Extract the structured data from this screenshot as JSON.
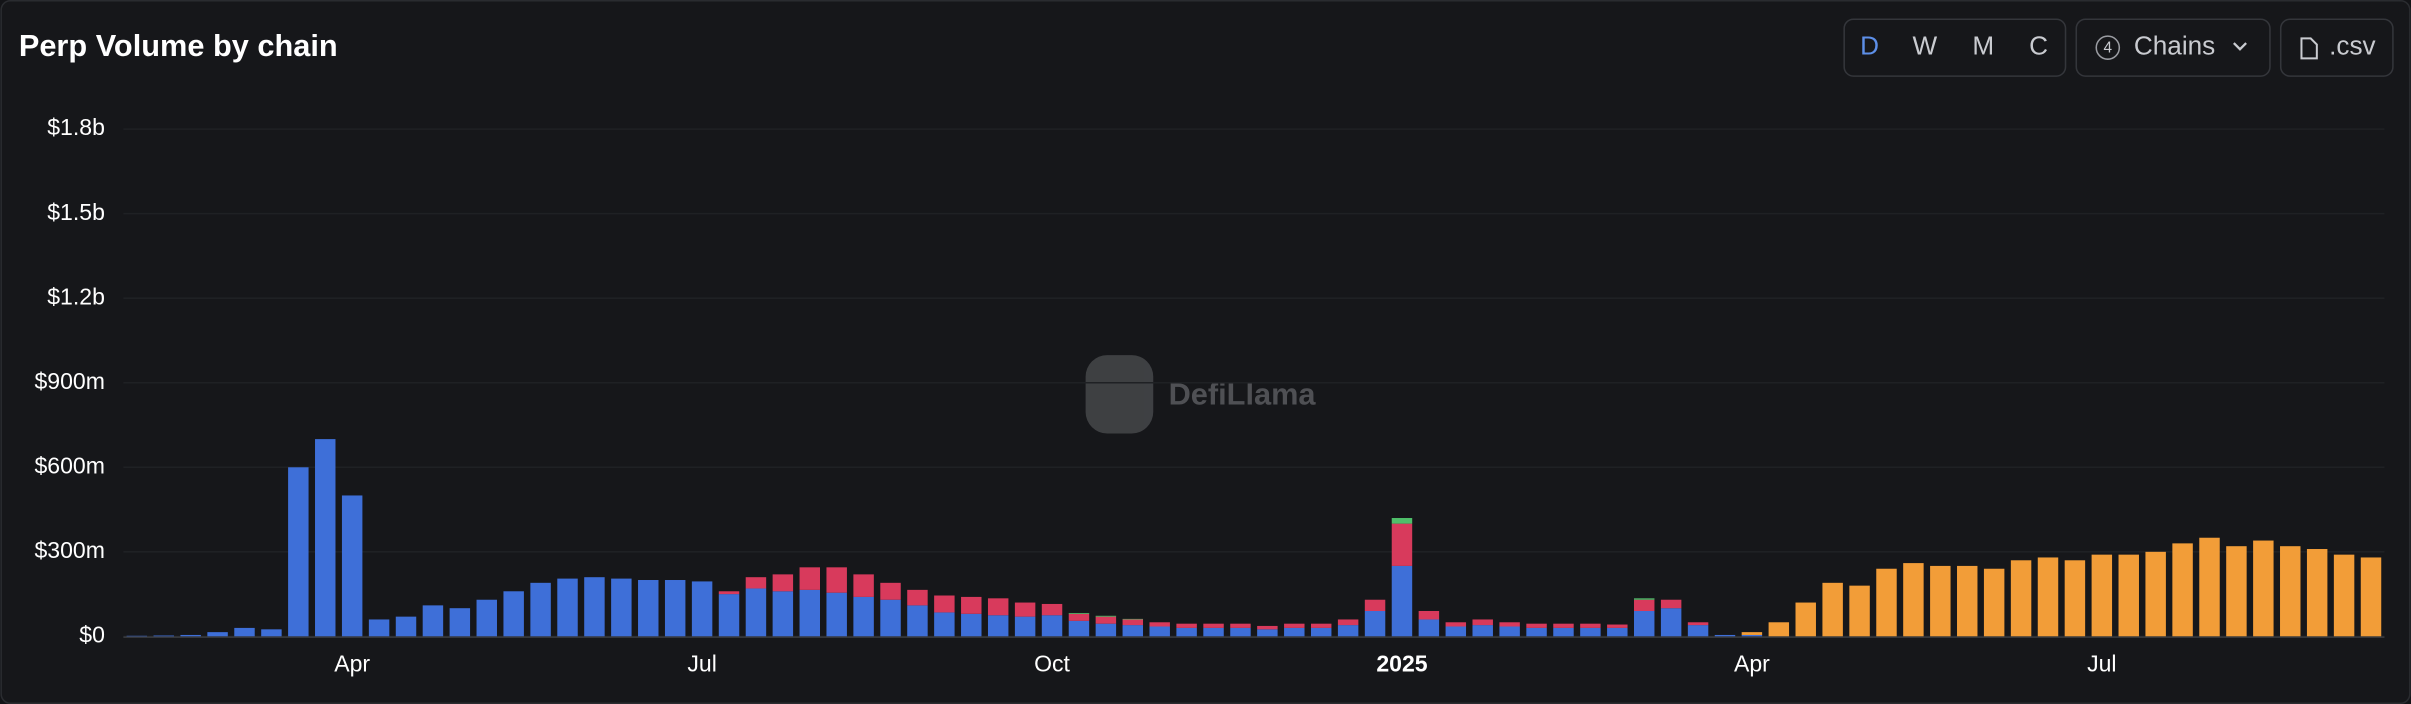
{
  "chart_data": {
    "type": "bar",
    "stacked": true,
    "title": "Perp Volume by chain",
    "categories": [
      null,
      null,
      null,
      null,
      null,
      null,
      null,
      null,
      "Apr",
      null,
      null,
      null,
      null,
      null,
      null,
      null,
      null,
      null,
      null,
      null,
      null,
      "Jul",
      null,
      null,
      null,
      null,
      null,
      null,
      null,
      null,
      null,
      null,
      null,
      null,
      "Oct",
      null,
      null,
      null,
      null,
      null,
      null,
      null,
      null,
      null,
      null,
      null,
      null,
      "2025",
      null,
      null,
      null,
      null,
      null,
      null,
      null,
      null,
      null,
      null,
      null,
      null,
      "Apr",
      null,
      null,
      null,
      null,
      null,
      null,
      null,
      null,
      null,
      null,
      null,
      null,
      "Jul",
      null,
      null,
      null,
      null,
      null,
      null,
      null,
      null,
      null,
      null
    ],
    "series": [
      {
        "color": "#3e6fd8",
        "values": [
          2,
          3,
          5,
          15,
          30,
          25,
          600,
          700,
          500,
          60,
          70,
          110,
          100,
          130,
          160,
          190,
          205,
          210,
          205,
          200,
          200,
          195,
          150,
          170,
          160,
          165,
          155,
          140,
          130,
          110,
          85,
          80,
          75,
          70,
          75,
          55,
          45,
          40,
          35,
          30,
          30,
          30,
          25,
          30,
          30,
          40,
          90,
          250,
          60,
          35,
          40,
          35,
          30,
          30,
          30,
          30,
          90,
          100,
          40,
          5,
          5,
          0,
          0,
          0,
          0,
          0,
          0,
          0,
          0,
          0,
          0,
          0,
          0,
          0,
          0,
          0,
          0,
          0,
          0,
          0,
          0,
          0,
          0,
          0
        ]
      },
      {
        "color": "#d83a5c",
        "values": [
          0,
          0,
          0,
          0,
          0,
          0,
          0,
          0,
          0,
          0,
          0,
          0,
          0,
          0,
          0,
          0,
          0,
          0,
          0,
          0,
          0,
          0,
          10,
          40,
          60,
          80,
          90,
          80,
          60,
          55,
          60,
          60,
          60,
          50,
          40,
          25,
          25,
          20,
          15,
          15,
          15,
          15,
          12,
          15,
          15,
          20,
          40,
          150,
          30,
          15,
          20,
          15,
          15,
          15,
          15,
          12,
          40,
          30,
          10,
          0,
          0,
          0,
          0,
          0,
          0,
          0,
          0,
          0,
          0,
          0,
          0,
          0,
          0,
          0,
          0,
          0,
          0,
          0,
          0,
          0,
          0,
          0,
          0,
          0
        ]
      },
      {
        "color": "#4fbf6a",
        "values": [
          0,
          0,
          0,
          0,
          0,
          0,
          0,
          0,
          0,
          0,
          0,
          0,
          0,
          0,
          0,
          0,
          0,
          0,
          0,
          0,
          0,
          0,
          0,
          0,
          0,
          0,
          0,
          0,
          0,
          0,
          0,
          0,
          0,
          0,
          0,
          3,
          3,
          2,
          0,
          0,
          0,
          0,
          0,
          0,
          0,
          0,
          0,
          20,
          0,
          0,
          0,
          0,
          0,
          0,
          0,
          0,
          5,
          0,
          0,
          0,
          0,
          0,
          0,
          0,
          0,
          0,
          0,
          0,
          0,
          0,
          0,
          0,
          0,
          0,
          0,
          0,
          0,
          0,
          0,
          0,
          0,
          0,
          0,
          0
        ]
      },
      {
        "color": "#f29d38",
        "values": [
          0,
          0,
          0,
          0,
          0,
          0,
          0,
          0,
          0,
          0,
          0,
          0,
          0,
          0,
          0,
          0,
          0,
          0,
          0,
          0,
          0,
          0,
          0,
          0,
          0,
          0,
          0,
          0,
          0,
          0,
          0,
          0,
          0,
          0,
          0,
          0,
          0,
          0,
          0,
          0,
          0,
          0,
          0,
          0,
          0,
          0,
          0,
          0,
          0,
          0,
          0,
          0,
          0,
          0,
          0,
          0,
          0,
          0,
          0,
          0,
          10,
          50,
          120,
          190,
          180,
          240,
          260,
          250,
          250,
          240,
          270,
          280,
          270,
          290,
          290,
          300,
          330,
          350,
          320,
          340,
          320,
          310,
          290,
          280
        ]
      }
    ],
    "ylim": [
      0,
      1800
    ],
    "yticks": [
      {
        "value": 0,
        "label": "$0"
      },
      {
        "value": 300,
        "label": "$300m"
      },
      {
        "value": 600,
        "label": "$600m"
      },
      {
        "value": 900,
        "label": "$900m"
      },
      {
        "value": 1200,
        "label": "$1.2b"
      },
      {
        "value": 1500,
        "label": "$1.5b"
      },
      {
        "value": 1800,
        "label": "$1.8b"
      }
    ],
    "grid": true
  },
  "controls": {
    "intervals": [
      "D",
      "W",
      "M",
      "C"
    ],
    "chains_count": "4",
    "chains": "Chains",
    "csv": ".csv"
  },
  "watermark": "DefiLlama"
}
